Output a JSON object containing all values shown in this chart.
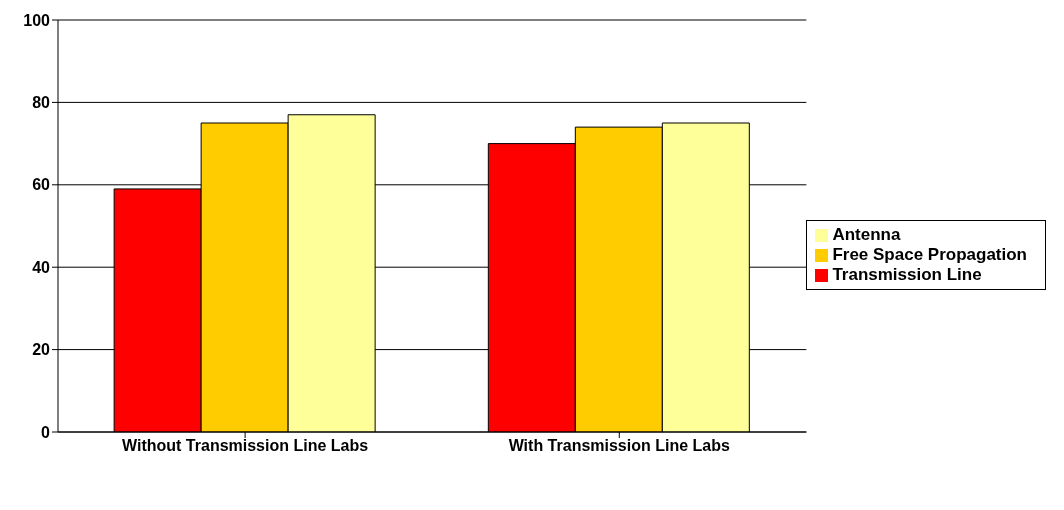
{
  "chart_data": {
    "type": "bar",
    "categories": [
      "Without Transmission Line Labs",
      "With Transmission Line Labs"
    ],
    "series": [
      {
        "name": "Transmission Line",
        "color": "#ff0000",
        "values": [
          59,
          70
        ]
      },
      {
        "name": "Free Space Propagation",
        "color": "#ffcc00",
        "values": [
          75,
          74
        ]
      },
      {
        "name": "Antenna",
        "color": "#ffff99",
        "values": [
          77,
          75
        ]
      }
    ],
    "ylim": [
      0,
      100
    ],
    "yticks": [
      0,
      20,
      40,
      60,
      80,
      100
    ],
    "grid": "y",
    "legend": "right"
  }
}
